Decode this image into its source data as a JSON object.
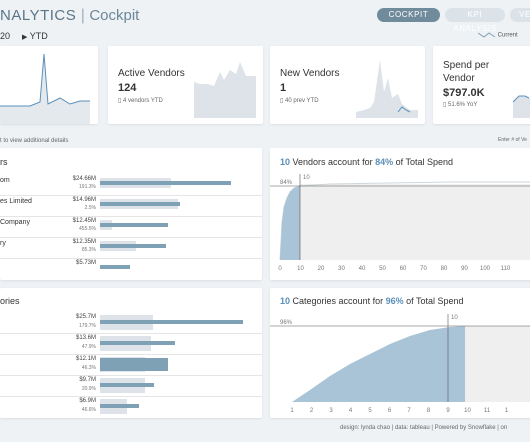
{
  "header": {
    "title": "NALYTICS",
    "subtitle": "Cockpit",
    "year": "20",
    "period": "YTD",
    "tabs": [
      "COCKPIT",
      "KPI ANALYSIS",
      "VE"
    ],
    "legend_current": "Current"
  },
  "kpis": [
    {
      "title": "Active Vendors",
      "value": "124",
      "sub": "4 vendors YTD"
    },
    {
      "title": "New Vendors",
      "value": "1",
      "sub": "40 prev YTD"
    },
    {
      "title_line1": "Spend per",
      "title_line2": "Vendor",
      "value": "$797.0K",
      "sub": "51.6% YoY"
    }
  ],
  "hint": "t to view additional details",
  "hint_right": "Enter # of Ve",
  "vendors": {
    "title": "rs",
    "rows": [
      {
        "name": "om",
        "amount": "$24.66M",
        "pct": "191.3%",
        "cur": 0.87,
        "prev": 0.47
      },
      {
        "name": "es Limited",
        "amount": "$14.96M",
        "pct": "2.5%",
        "cur": 0.53,
        "prev": 0.52
      },
      {
        "name": "Company",
        "amount": "$12.45M",
        "pct": "455.5%",
        "cur": 0.45,
        "prev": 0.08
      },
      {
        "name": "ry",
        "amount": "$12.35M",
        "pct": "85.3%",
        "cur": 0.44,
        "prev": 0.24
      },
      {
        "name": "",
        "amount": "$5.73M",
        "pct": "",
        "cur": 0.2,
        "prev": 0
      }
    ]
  },
  "categories": {
    "title": "ories",
    "rows": [
      {
        "amount": "$25.7M",
        "pct": "179.7%",
        "cur": 0.95,
        "prev": 0.35
      },
      {
        "amount": "$13.6M",
        "pct": "47.9%",
        "cur": 0.5,
        "prev": 0.34
      },
      {
        "amount": "$12.1M",
        "pct": "46.3%",
        "cur": 0.45,
        "prev": 0.3
      },
      {
        "amount": "$9.7M",
        "pct": "20.9%",
        "cur": 0.36,
        "prev": 0.3
      },
      {
        "amount": "$6.9M",
        "pct": "46.6%",
        "cur": 0.26,
        "prev": 0.18
      }
    ]
  },
  "pareto_vendors": {
    "title_n": "10",
    "title_mid": "Vendors account for",
    "title_pct": "84%",
    "title_end": "of Total Spend",
    "ref_pct_label": "84%",
    "ref_n_label": "10",
    "x_ticks": [
      "0",
      "10",
      "20",
      "30",
      "40",
      "50",
      "60",
      "70",
      "80",
      "90",
      "100",
      "110"
    ]
  },
  "pareto_categories": {
    "title_n": "10",
    "title_mid": "Categories account for",
    "title_pct": "96%",
    "title_end": "of Total Spend",
    "ref_pct_label": "96%",
    "ref_n_label": "10",
    "x_ticks": [
      "1",
      "2",
      "3",
      "4",
      "5",
      "6",
      "7",
      "8",
      "9",
      "10",
      "11",
      "1"
    ]
  },
  "footer": {
    "design": "design: lynda chao",
    "data": "data: tableau",
    "powered": "Powered by Snowflake",
    "on": "on"
  },
  "colors": {
    "accent": "#5b8fb9",
    "bar": "#7fa1b5",
    "bar_prev": "#dde3e8",
    "area": "#a9c4d6",
    "spark": "#5b8fb9"
  }
}
